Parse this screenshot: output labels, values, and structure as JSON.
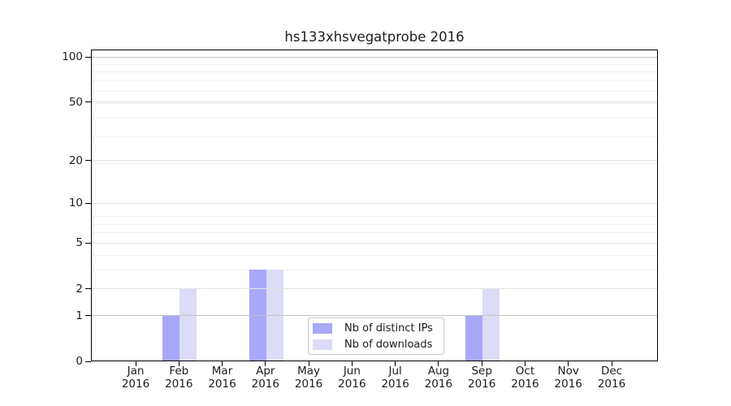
{
  "chart_data": {
    "type": "bar",
    "title": "hs133xhsvegatprobe 2016",
    "categories": [
      "Jan",
      "Feb",
      "Mar",
      "Apr",
      "May",
      "Jun",
      "Jul",
      "Aug",
      "Sep",
      "Oct",
      "Nov",
      "Dec"
    ],
    "x_year_label": "2016",
    "series": [
      {
        "name": "Nb of distinct IPs",
        "color": "#a8a8f8",
        "values": [
          0,
          1,
          0,
          3,
          0,
          0,
          0,
          0,
          1,
          0,
          0,
          0
        ]
      },
      {
        "name": "Nb of downloads",
        "color": "#dcdcf8",
        "values": [
          0,
          2,
          0,
          3,
          0,
          0,
          0,
          0,
          2,
          0,
          0,
          0
        ]
      }
    ],
    "yscale": "log1p",
    "yticks": [
      0,
      1,
      2,
      5,
      10,
      20,
      50,
      100
    ],
    "ylim": [
      0,
      110
    ],
    "grid": true,
    "legend_position": "lower center",
    "grid_emphasis": [
      100,
      1
    ],
    "grid_colors": {
      "emphasis": "#c3c3c3",
      "major": "#e2e2e2",
      "minor": "#f1f1f1"
    },
    "axis_color": "#000000",
    "text_color": "#1c1c1c"
  }
}
